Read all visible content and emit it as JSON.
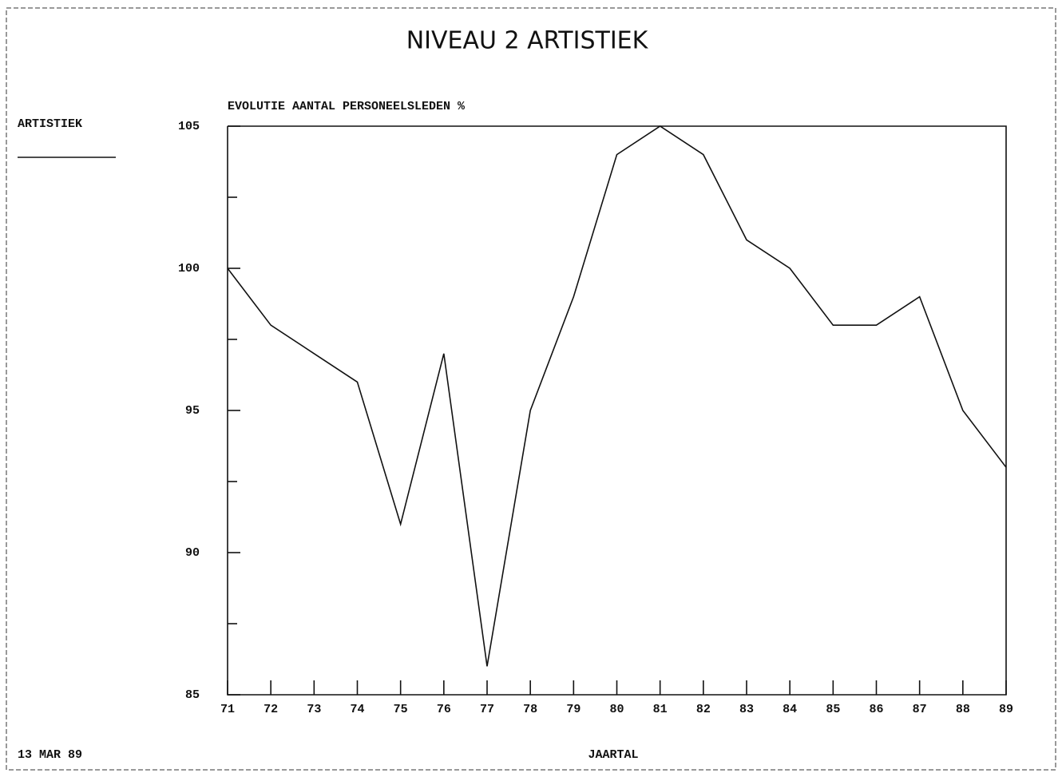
{
  "chart_data": {
    "type": "line",
    "title": "NIVEAU 2 ARTISTIEK",
    "subtitle": "EVOLUTIE AANTAL PERSONEELSLEDEN %",
    "xlabel": "JAARTAL",
    "date": "13 MAR 89",
    "x": [
      71,
      72,
      73,
      74,
      75,
      76,
      77,
      78,
      79,
      80,
      81,
      82,
      83,
      84,
      85,
      86,
      87,
      88,
      89
    ],
    "series": [
      {
        "name": "ARTISTIEK",
        "color": "#111111",
        "values": [
          100,
          98,
          97,
          96,
          91,
          97,
          86,
          95,
          99,
          104,
          105,
          104,
          101,
          100,
          98,
          98,
          99,
          95,
          93
        ]
      }
    ],
    "xlim": [
      71,
      89
    ],
    "xticks": [
      71,
      72,
      73,
      74,
      75,
      76,
      77,
      78,
      79,
      80,
      81,
      82,
      83,
      84,
      85,
      86,
      87,
      88,
      89
    ],
    "ylim": [
      85,
      105
    ],
    "yticks": [
      85,
      90,
      95,
      100,
      105
    ],
    "yminor_ticks": [
      87.5,
      92.5,
      97.5,
      102.5
    ]
  }
}
